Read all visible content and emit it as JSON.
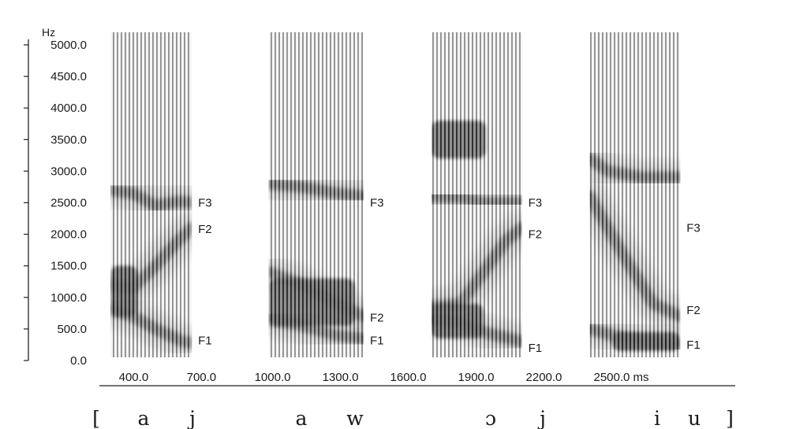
{
  "chart_data": {
    "type": "spectrogram",
    "y_unit": "Hz",
    "x_unit": "ms",
    "y_ticks": [
      {
        "value": 0,
        "label": "0.0"
      },
      {
        "value": 500,
        "label": "500.0"
      },
      {
        "value": 1000,
        "label": "1000.0"
      },
      {
        "value": 1500,
        "label": "1500.0"
      },
      {
        "value": 2000,
        "label": "2000.0"
      },
      {
        "value": 2500,
        "label": "2500.0"
      },
      {
        "value": 3000,
        "label": "3000.0"
      },
      {
        "value": 3500,
        "label": "3500.0"
      },
      {
        "value": 4000,
        "label": "4000.0"
      },
      {
        "value": 4500,
        "label": "4500.0"
      },
      {
        "value": 5000,
        "label": "5000.0"
      }
    ],
    "x_ticks": [
      {
        "value": 400,
        "label": "400.0"
      },
      {
        "value": 700,
        "label": "700.0"
      },
      {
        "value": 1000,
        "label": "1000.0"
      },
      {
        "value": 1300,
        "label": "1300.0"
      },
      {
        "value": 1600,
        "label": "1600.0"
      },
      {
        "value": 1900,
        "label": "1900.0"
      },
      {
        "value": 2200,
        "label": "2200.0"
      },
      {
        "value": 2500,
        "label": "2500.0 ms"
      }
    ],
    "ylim": [
      0,
      5200
    ],
    "xlim": [
      350,
      3100
    ],
    "tokens": [
      {
        "segments": [
          "[",
          "a",
          "j"
        ],
        "t_start": 300,
        "t_end": 660,
        "dark_regions": [
          {
            "t0": 300,
            "t1": 420,
            "f0": 700,
            "f1": 1500
          }
        ],
        "formants": [
          {
            "name": "F1",
            "points": [
              [
                300,
                800
              ],
              [
                400,
                700
              ],
              [
                500,
                500
              ],
              [
                620,
                300
              ],
              [
                660,
                280
              ]
            ]
          },
          {
            "name": "F2",
            "points": [
              [
                300,
                1200
              ],
              [
                400,
                1150
              ],
              [
                500,
                1500
              ],
              [
                600,
                1900
              ],
              [
                660,
                2100
              ]
            ]
          },
          {
            "name": "F3",
            "points": [
              [
                300,
                2700
              ],
              [
                400,
                2650
              ],
              [
                500,
                2450
              ],
              [
                600,
                2520
              ],
              [
                660,
                2500
              ]
            ]
          }
        ],
        "labels": [
          {
            "name": "F1",
            "freq": 320
          },
          {
            "name": "F2",
            "freq": 2080
          },
          {
            "name": "F3",
            "freq": 2500
          }
        ]
      },
      {
        "segments": [
          "a",
          "w"
        ],
        "t_start": 1000,
        "t_end": 1420,
        "dark_regions": [
          {
            "t0": 1000,
            "t1": 1380,
            "f0": 550,
            "f1": 1300
          }
        ],
        "formants": [
          {
            "name": "F1",
            "points": [
              [
                1000,
                650
              ],
              [
                1150,
                550
              ],
              [
                1300,
                400
              ],
              [
                1420,
                350
              ]
            ]
          },
          {
            "name": "F2",
            "points": [
              [
                1000,
                1400
              ],
              [
                1150,
                1200
              ],
              [
                1300,
                900
              ],
              [
                1420,
                700
              ]
            ]
          },
          {
            "name": "F3",
            "points": [
              [
                1000,
                2800
              ],
              [
                1150,
                2750
              ],
              [
                1300,
                2650
              ],
              [
                1420,
                2600
              ]
            ]
          }
        ],
        "labels": [
          {
            "name": "F1",
            "freq": 320
          },
          {
            "name": "F2",
            "freq": 680
          },
          {
            "name": "F3",
            "freq": 2500
          }
        ]
      },
      {
        "segments": [
          "ɔ",
          "j"
        ],
        "t_start": 1720,
        "t_end": 2120,
        "dark_regions": [
          {
            "t0": 1720,
            "t1": 1950,
            "f0": 350,
            "f1": 900
          },
          {
            "t0": 1720,
            "t1": 1960,
            "f0": 3200,
            "f1": 3800
          }
        ],
        "formants": [
          {
            "name": "F1",
            "points": [
              [
                1720,
                650
              ],
              [
                1850,
                600
              ],
              [
                1950,
                450
              ],
              [
                2120,
                300
              ]
            ]
          },
          {
            "name": "F2",
            "points": [
              [
                1720,
                850
              ],
              [
                1850,
                900
              ],
              [
                1950,
                1400
              ],
              [
                2050,
                1900
              ],
              [
                2120,
                2100
              ]
            ]
          },
          {
            "name": "F3",
            "points": [
              [
                1720,
                2600
              ],
              [
                1850,
                2580
              ],
              [
                1950,
                2500
              ],
              [
                2120,
                2500
              ]
            ]
          }
        ],
        "labels": [
          {
            "name": "F1",
            "freq": 200
          },
          {
            "name": "F2",
            "freq": 2000
          },
          {
            "name": "F3",
            "freq": 2500
          }
        ]
      },
      {
        "segments": [
          "i",
          "u",
          "]"
        ],
        "t_start": 2420,
        "t_end": 2820,
        "dark_regions": [
          {
            "t0": 2520,
            "t1": 2820,
            "f0": 150,
            "f1": 450
          }
        ],
        "formants": [
          {
            "name": "F1",
            "points": [
              [
                2420,
                500
              ],
              [
                2520,
                400
              ],
              [
                2650,
                300
              ],
              [
                2820,
                250
              ]
            ]
          },
          {
            "name": "F2",
            "points": [
              [
                2420,
                2600
              ],
              [
                2500,
                2100
              ],
              [
                2580,
                1600
              ],
              [
                2700,
                900
              ],
              [
                2820,
                700
              ]
            ]
          },
          {
            "name": "F3",
            "points": [
              [
                2420,
                3200
              ],
              [
                2500,
                3000
              ],
              [
                2650,
                2900
              ],
              [
                2820,
                2900
              ]
            ]
          }
        ],
        "labels": [
          {
            "name": "F1",
            "freq": 250
          },
          {
            "name": "F2",
            "freq": 800
          },
          {
            "name": "F3",
            "freq": 2100
          }
        ]
      }
    ]
  }
}
